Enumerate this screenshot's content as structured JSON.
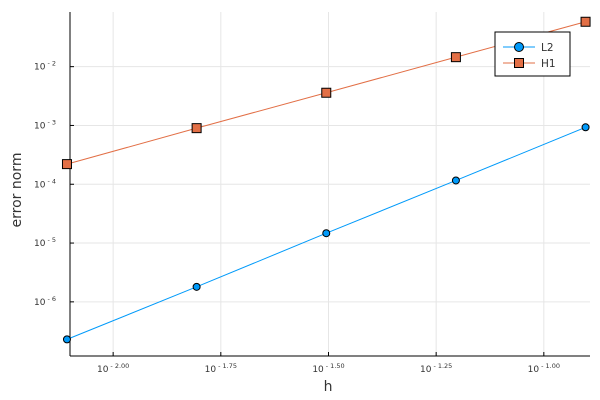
{
  "chart_data": {
    "type": "line",
    "xlabel": "h",
    "ylabel": "error norm",
    "x_scale": "log10",
    "y_scale": "log10",
    "grid": true,
    "legend_position": "top-right",
    "x_ticks": [
      {
        "value": 0.01,
        "base": "10",
        "exp": "- 2.00"
      },
      {
        "value": 0.017782794,
        "base": "10",
        "exp": "- 1.75"
      },
      {
        "value": 0.031622777,
        "base": "10",
        "exp": "- 1.50"
      },
      {
        "value": 0.056234133,
        "base": "10",
        "exp": "- 1.25"
      },
      {
        "value": 0.1,
        "base": "10",
        "exp": "- 1.00"
      }
    ],
    "y_ticks": [
      {
        "value": 1e-06,
        "base": "10",
        "exp": "- 6"
      },
      {
        "value": 1e-05,
        "base": "10",
        "exp": "- 5"
      },
      {
        "value": 0.0001,
        "base": "10",
        "exp": "- 4"
      },
      {
        "value": 0.001,
        "base": "10",
        "exp": "- 3"
      },
      {
        "value": 0.01,
        "base": "10",
        "exp": "- 2"
      }
    ],
    "xlim": [
      0.00794,
      0.128
    ],
    "ylim": [
      1.2e-07,
      0.085
    ],
    "series": [
      {
        "name": "L2",
        "color": "#009AFA",
        "marker": "circle",
        "x": [
          0.0078125,
          0.015625,
          0.03125,
          0.0625,
          0.125
        ],
        "y": [
          2.3e-07,
          1.8e-06,
          1.47e-05,
          0.000116,
          0.00093
        ]
      },
      {
        "name": "H1",
        "color": "#E26F46",
        "marker": "square",
        "x": [
          0.0078125,
          0.015625,
          0.03125,
          0.0625,
          0.125
        ],
        "y": [
          0.00022,
          0.0009,
          0.0036,
          0.0145,
          0.058
        ]
      }
    ]
  }
}
